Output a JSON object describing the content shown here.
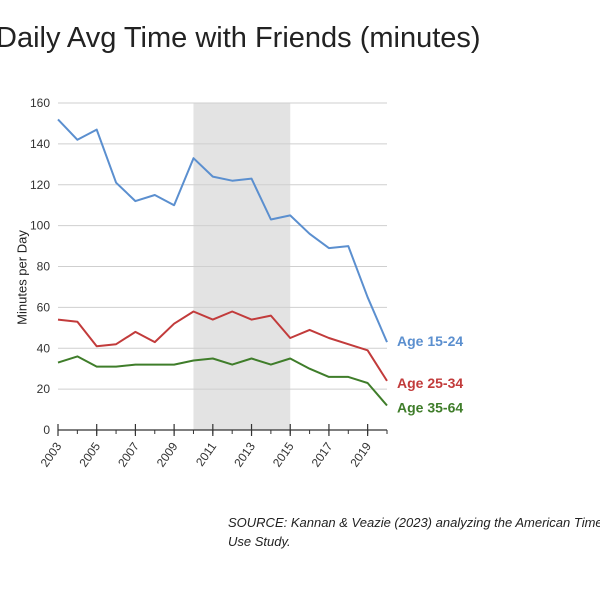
{
  "chart_data": {
    "type": "line",
    "title": "Daily Avg Time with Friends (minutes)",
    "ylabel": "Minutes per Day",
    "xlabel": "",
    "ylim": [
      0,
      160
    ],
    "xlim": [
      2003,
      2020
    ],
    "yticks": [
      0,
      20,
      40,
      60,
      80,
      100,
      120,
      140,
      160
    ],
    "xticks": [
      2003,
      2005,
      2007,
      2009,
      2011,
      2013,
      2015,
      2017,
      2019
    ],
    "grid": true,
    "shaded_range": [
      2010,
      2015
    ],
    "legend": "inline labels at right end of lines",
    "x": [
      2003,
      2004,
      2005,
      2006,
      2007,
      2008,
      2009,
      2010,
      2011,
      2012,
      2013,
      2014,
      2015,
      2016,
      2017,
      2018,
      2019,
      2020
    ],
    "series": [
      {
        "name": "Age 15-24",
        "color": "#5b8fcf",
        "values": [
          152,
          142,
          147,
          121,
          112,
          115,
          110,
          133,
          124,
          122,
          123,
          103,
          105,
          96,
          89,
          90,
          65,
          43
        ]
      },
      {
        "name": "Age 25-34",
        "color": "#c23b3b",
        "values": [
          54,
          53,
          41,
          42,
          48,
          43,
          52,
          58,
          54,
          58,
          54,
          56,
          45,
          49,
          45,
          42,
          39,
          24
        ]
      },
      {
        "name": "Age 35-64",
        "color": "#3f7d2a",
        "values": [
          33,
          36,
          31,
          31,
          32,
          32,
          32,
          34,
          35,
          32,
          35,
          32,
          35,
          30,
          26,
          26,
          23,
          12
        ]
      }
    ]
  },
  "source": "SOURCE: Kannan & Veazie (2023) analyzing the American Time Use Study."
}
